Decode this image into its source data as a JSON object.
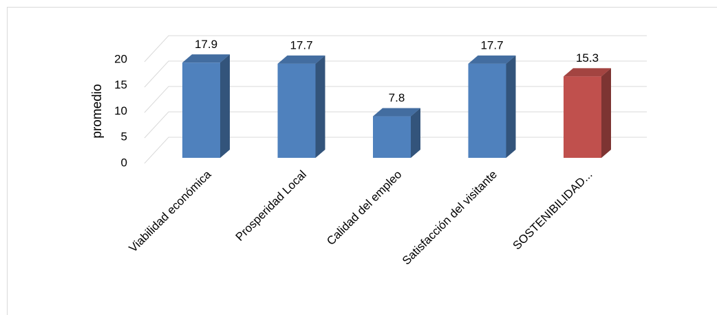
{
  "chart_data": {
    "type": "bar3d",
    "y_label": "promedio",
    "categories": [
      "Viabilidad económica",
      "Prosperidad Local",
      "Calidad del empleo",
      "Satisfacción del visitante",
      "SOSTENIBILIDAD..."
    ],
    "values": [
      17.9,
      17.7,
      7.8,
      17.7,
      15.3
    ],
    "colors": [
      "#4f81bd",
      "#4f81bd",
      "#4f81bd",
      "#4f81bd",
      "#c0504d"
    ],
    "ylim": [
      0,
      20
    ],
    "yticks": [
      0,
      5,
      10,
      15,
      20
    ],
    "grid": true
  }
}
